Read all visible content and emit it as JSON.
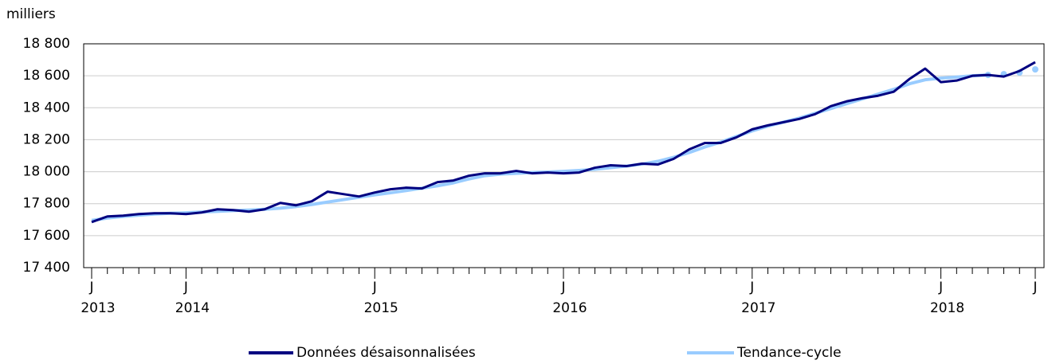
{
  "chart_data": {
    "type": "line",
    "y_axis_label": "milliers",
    "categories": [
      "J",
      null,
      null,
      null,
      null,
      null,
      "J",
      null,
      null,
      null,
      null,
      null,
      null,
      null,
      null,
      null,
      null,
      null,
      "J",
      null,
      null,
      null,
      null,
      null,
      null,
      null,
      null,
      null,
      null,
      null,
      "J",
      null,
      null,
      null,
      null,
      null,
      null,
      null,
      null,
      null,
      null,
      null,
      "J",
      null,
      null,
      null,
      null,
      null,
      null,
      null,
      null,
      null,
      null,
      null,
      "J",
      null,
      null,
      null,
      null,
      null,
      "J"
    ],
    "years": [
      "2013",
      null,
      null,
      null,
      null,
      null,
      "2014",
      null,
      null,
      null,
      null,
      null,
      null,
      null,
      null,
      null,
      null,
      null,
      "2015",
      null,
      null,
      null,
      null,
      null,
      null,
      null,
      null,
      null,
      null,
      null,
      "2016",
      null,
      null,
      null,
      null,
      null,
      null,
      null,
      null,
      null,
      null,
      null,
      "2017",
      null,
      null,
      null,
      null,
      null,
      null,
      null,
      null,
      null,
      null,
      null,
      "2018",
      null,
      null,
      null,
      null,
      null,
      null
    ],
    "series": [
      {
        "name": "Données désaisonnalisées",
        "color": "#000080",
        "values": [
          17685,
          17720,
          17725,
          17735,
          17740,
          17740,
          17735,
          17745,
          17765,
          17760,
          17750,
          17765,
          17805,
          17790,
          17815,
          17875,
          17860,
          17845,
          17870,
          17890,
          17900,
          17895,
          17935,
          17945,
          17975,
          17990,
          17990,
          18005,
          17990,
          17995,
          17990,
          17995,
          18025,
          18040,
          18035,
          18050,
          18045,
          18080,
          18140,
          18180,
          18180,
          18215,
          18265,
          18290,
          18310,
          18330,
          18360,
          18410,
          18440,
          18460,
          18475,
          18500,
          18580,
          18645,
          18560,
          18570,
          18600,
          18605,
          18595,
          18630,
          18685
        ]
      },
      {
        "name": "Tendance-cycle",
        "color": "#99ccff",
        "dotted_from": 57,
        "values": [
          17695,
          17710,
          17720,
          17728,
          17735,
          17740,
          17743,
          17748,
          17752,
          17757,
          17760,
          17765,
          17772,
          17782,
          17795,
          17810,
          17825,
          17840,
          17855,
          17868,
          17882,
          17897,
          17912,
          17930,
          17955,
          17975,
          17985,
          17990,
          17995,
          17998,
          18002,
          18008,
          18015,
          18025,
          18035,
          18048,
          18065,
          18090,
          18120,
          18155,
          18185,
          18220,
          18255,
          18285,
          18310,
          18335,
          18365,
          18395,
          18425,
          18455,
          18485,
          18515,
          18550,
          18575,
          18585,
          18592,
          18600,
          18605,
          18610,
          18620,
          18640
        ]
      }
    ],
    "ylim": [
      17400,
      18800
    ],
    "yticks": [
      {
        "value": 17400,
        "label": "17 400"
      },
      {
        "value": 17600,
        "label": "17 600"
      },
      {
        "value": 17800,
        "label": "17 800"
      },
      {
        "value": 18000,
        "label": "18 000"
      },
      {
        "value": 18200,
        "label": "18 200"
      },
      {
        "value": 18400,
        "label": "18 400"
      },
      {
        "value": 18600,
        "label": "18 600"
      },
      {
        "value": 18800,
        "label": "18 800"
      }
    ],
    "grid": true
  }
}
